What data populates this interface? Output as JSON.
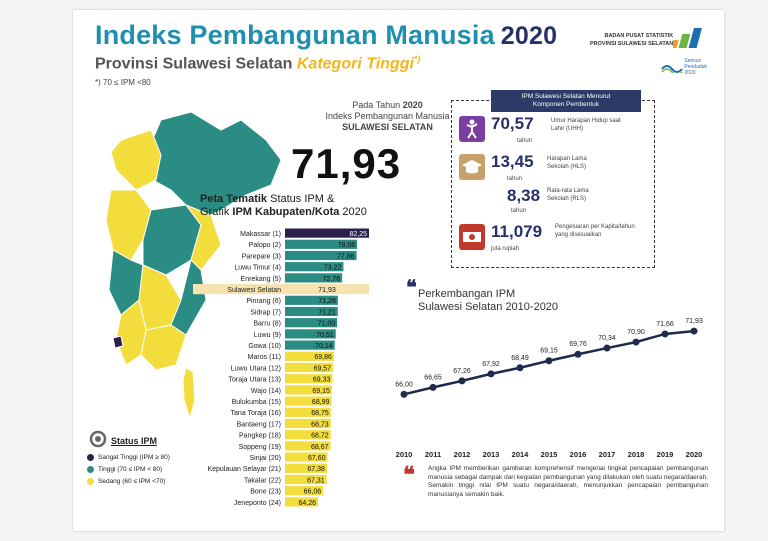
{
  "header": {
    "title": "Indeks Pembangunan Manusia",
    "title_year": "2020",
    "subtitle": "Provinsi Sulawesi Selatan",
    "subtitle_category": "Kategori Tinggi",
    "subtitle_mark": "*)",
    "footnote": "*) 70 ≤ IPM <80",
    "agency_line1": "BADAN PUSAT STATISTIK",
    "agency_line2": "PROVINSI SULAWESI SELATAN",
    "sensus": "Sensus Penduduk 2020"
  },
  "summary": {
    "line1_prefix": "Pada Tahun",
    "line1_year": "2020",
    "line2": "Indeks Pembangunan Manusia",
    "line3": "SULAWESI SELATAN",
    "value": "71,93"
  },
  "components": {
    "title_line1": "IPM Sulawesi Selatan Menurut",
    "title_line2": "Komponen Pembentuk",
    "items": [
      {
        "value": "70,57",
        "unit": "tahun",
        "desc": "Umur Harapan Hidup saat Lahir (UHH)",
        "icon": "person-running-icon",
        "color": "#7b3fa0"
      },
      {
        "value": "13,45",
        "unit": "tahun",
        "desc": "Harapan Lama Sekolah (HLS)",
        "icon": "graduation-cap-icon",
        "color": "#c9a06a"
      },
      {
        "value": "8,38",
        "unit": "tahun",
        "desc": "Rata-rata Lama Sekolah (RLS)",
        "icon": "graduation-cap-icon",
        "color": "#c9a06a"
      },
      {
        "value": "11,079",
        "unit": "juta rupiah",
        "desc": "Pengeluaran per Kapita/tahun yang disesuaikan",
        "icon": "money-icon",
        "color": "#c0392b"
      }
    ]
  },
  "bar_title": {
    "line1_bold": "Peta Tematik",
    "line1_rest": " Status IPM &",
    "line2_prefix": "Grafik ",
    "line2_bold": "IPM Kabupaten/Kota",
    "line2_year": " 2020"
  },
  "trend_title": {
    "quote": "❝",
    "line1": "Perkembangan IPM",
    "line2": "Sulawesi Selatan 2010-2020"
  },
  "status_legend": {
    "title": "Status IPM",
    "items": [
      {
        "label": "Sangat Tinggi (IPM ≥ 80)",
        "color": "#2b1f4d"
      },
      {
        "label": "Tinggi (70 ≤ IPM < 80)",
        "color": "#2a8c82"
      },
      {
        "label": "Sedang (60 ≤ IPM <70)",
        "color": "#f3dd3c"
      }
    ]
  },
  "note": {
    "quote": "❝",
    "text": "Angka IPM memberikan gambaran komprehensif mengenai tingkat pencapaian pembangunan manusia sebagai dampak dari kegiatan pembangunan yang dilakukan oleh suatu negara/daerah. Semakin tinggi nilai IPM suatu negara/daerah, menunjukkan pencapaian pembangunan manusianya semakin baik."
  },
  "chart_data": [
    {
      "type": "bar",
      "orientation": "horizontal",
      "categories": [
        "Makassar (1)",
        "Palopo (2)",
        "Parepare (3)",
        "Luwu Timur (4)",
        "Enrekang (5)",
        "Sulawesi Selatan",
        "Pinrang (6)",
        "Sidrap (7)",
        "Barru (8)",
        "Luwu (9)",
        "Gowa (10)",
        "Maros (11)",
        "Luwu Utara (12)",
        "Toraja Utara (13)",
        "Wajo (14)",
        "Bulukumba (15)",
        "Tana Toraja (16)",
        "Bantaeng (17)",
        "Pangkep (18)",
        "Soppeng (19)",
        "Sinjai (20)",
        "Kepulauan Selayar (21)",
        "Takalar (22)",
        "Bone (23)",
        "Jeneponto (24)"
      ],
      "values": [
        82.25,
        78.06,
        77.86,
        73.22,
        72.76,
        71.93,
        71.26,
        71.21,
        71.0,
        70.51,
        70.14,
        69.86,
        69.57,
        69.33,
        69.15,
        68.99,
        68.75,
        68.73,
        68.72,
        68.67,
        67.6,
        67.38,
        67.31,
        66.06,
        64.26
      ],
      "labels": [
        "82,25",
        "78,06",
        "77,86",
        "73,22",
        "72,76",
        "71,93",
        "71,26",
        "71,21",
        "71,00",
        "70,51",
        "70,14",
        "69,86",
        "69,57",
        "69,33",
        "69,15",
        "68,99",
        "68,75",
        "68,73",
        "68,72",
        "68,67",
        "67,60",
        "67,38",
        "67,31",
        "66,06",
        "64,26"
      ],
      "colors": {
        "sangat_tinggi": "#2b1f4d",
        "tinggi": "#2a8c82",
        "sedang": "#f3dd3c",
        "provinsi": "#f7e3b0"
      }
    },
    {
      "type": "line",
      "x": [
        "2010",
        "2011",
        "2012",
        "2013",
        "2014",
        "2015",
        "2016",
        "2017",
        "2018",
        "2019",
        "2020"
      ],
      "values": [
        66.0,
        66.65,
        67.26,
        67.92,
        68.49,
        69.15,
        69.76,
        70.34,
        70.9,
        71.66,
        71.93
      ],
      "labels": [
        "66,00",
        "66,65",
        "67,26",
        "67,92",
        "68,49",
        "69,15",
        "69,76",
        "70,34",
        "70,90",
        "71,66",
        "71,93"
      ],
      "color": "#1f2a4d"
    }
  ]
}
